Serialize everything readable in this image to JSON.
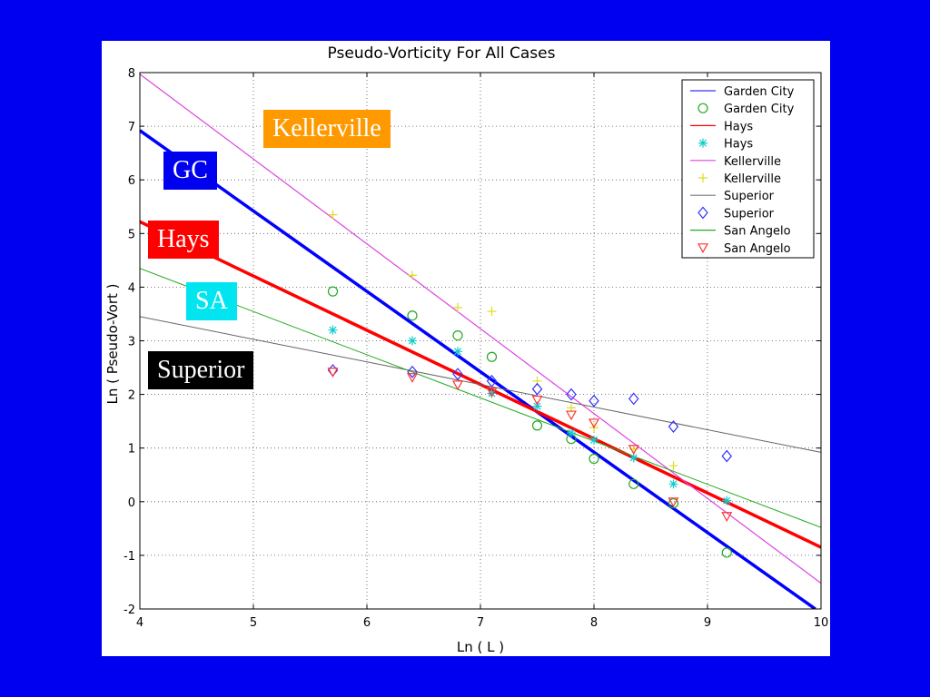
{
  "slide_labels": {
    "kellerville": {
      "text": "Kellerville",
      "color": "#ff9900"
    },
    "gc": {
      "text": "GC",
      "color": "#0000f0"
    },
    "hays": {
      "text": "Hays",
      "color": "#ff0000"
    },
    "sa": {
      "text": "SA",
      "color": "#00e5f0"
    },
    "superior": {
      "text": "Superior",
      "color": "#000000"
    }
  },
  "chart_data": {
    "type": "scatter",
    "title": "Pseudo-Vorticity For All Cases",
    "xlabel": "Ln ( L )",
    "ylabel": "Ln ( Pseudo-Vort )",
    "xlim": [
      4,
      10
    ],
    "ylim": [
      -2,
      8
    ],
    "xticks": [
      4,
      5,
      6,
      7,
      8,
      9,
      10
    ],
    "yticks": [
      -2,
      -1,
      0,
      1,
      2,
      3,
      4,
      5,
      6,
      7,
      8
    ],
    "grid": true,
    "legend_position": "top-right",
    "legend": [
      {
        "label": "Garden City",
        "kind": "line",
        "color": "#3333ff"
      },
      {
        "label": "Garden City",
        "kind": "marker",
        "marker": "circle",
        "color": "#22aa22"
      },
      {
        "label": "Hays",
        "kind": "line",
        "color": "#ff0000"
      },
      {
        "label": "Hays",
        "kind": "marker",
        "marker": "asterisk",
        "color": "#11cccc"
      },
      {
        "label": "Kellerville",
        "kind": "line",
        "color": "#dd44dd"
      },
      {
        "label": "Kellerville",
        "kind": "marker",
        "marker": "plus",
        "color": "#dddd22"
      },
      {
        "label": "Superior",
        "kind": "line",
        "color": "#777777"
      },
      {
        "label": "Superior",
        "kind": "marker",
        "marker": "diamond",
        "color": "#3333ff"
      },
      {
        "label": "San Angelo",
        "kind": "line",
        "color": "#22aa22"
      },
      {
        "label": "San Angelo",
        "kind": "marker",
        "marker": "triangle-down",
        "color": "#ff3333"
      }
    ],
    "fit_lines": [
      {
        "name": "Garden City",
        "color": "#0000ff",
        "width": 3.5,
        "x": [
          4,
          9.95
        ],
        "y": [
          6.92,
          -2.0
        ]
      },
      {
        "name": "Hays",
        "color": "#ff0000",
        "width": 3.5,
        "x": [
          4,
          10
        ],
        "y": [
          5.22,
          -0.85
        ]
      },
      {
        "name": "Kellerville",
        "color": "#dd44dd",
        "width": 1.2,
        "x": [
          4,
          10
        ],
        "y": [
          7.97,
          -1.52
        ]
      },
      {
        "name": "Superior",
        "color": "#666666",
        "width": 1,
        "x": [
          4,
          10
        ],
        "y": [
          3.45,
          0.92
        ]
      },
      {
        "name": "San Angelo",
        "color": "#22aa22",
        "width": 1,
        "x": [
          4,
          10
        ],
        "y": [
          4.35,
          -0.48
        ]
      }
    ],
    "series": [
      {
        "name": "Garden City",
        "marker": "circle",
        "color": "#22aa22",
        "x": [
          5.7,
          6.4,
          6.8,
          7.1,
          7.5,
          7.8,
          8.0,
          8.35,
          8.7,
          9.17
        ],
        "y": [
          3.92,
          3.47,
          3.1,
          2.7,
          1.42,
          1.17,
          0.8,
          0.33,
          -0.03,
          -0.95
        ]
      },
      {
        "name": "Hays",
        "marker": "asterisk",
        "color": "#11cccc",
        "x": [
          5.7,
          6.4,
          6.8,
          7.1,
          7.5,
          7.8,
          8.0,
          8.35,
          8.7,
          9.17
        ],
        "y": [
          3.2,
          3.0,
          2.8,
          2.02,
          1.78,
          1.28,
          1.15,
          0.82,
          0.33,
          0.02
        ]
      },
      {
        "name": "Kellerville",
        "marker": "plus",
        "color": "#dddd22",
        "x": [
          5.7,
          6.4,
          6.8,
          7.1,
          7.5,
          7.8,
          8.0,
          8.35,
          8.7
        ],
        "y": [
          5.35,
          4.22,
          3.62,
          3.55,
          2.25,
          1.75,
          1.38,
          0.98,
          0.67
        ]
      },
      {
        "name": "Superior",
        "marker": "diamond",
        "color": "#3333ff",
        "x": [
          5.7,
          6.4,
          6.8,
          7.1,
          7.5,
          7.8,
          8.0,
          8.35,
          8.7,
          9.17
        ],
        "y": [
          2.45,
          2.42,
          2.38,
          2.25,
          2.1,
          2.0,
          1.88,
          1.92,
          1.4,
          0.85
        ]
      },
      {
        "name": "San Angelo",
        "marker": "triangle-down",
        "color": "#ff3333",
        "x": [
          5.7,
          6.4,
          6.8,
          7.1,
          7.5,
          7.8,
          8.0,
          8.35,
          8.7,
          9.17
        ],
        "y": [
          2.42,
          2.32,
          2.18,
          2.05,
          1.9,
          1.62,
          1.47,
          0.98,
          0.0,
          -0.27
        ]
      }
    ]
  }
}
